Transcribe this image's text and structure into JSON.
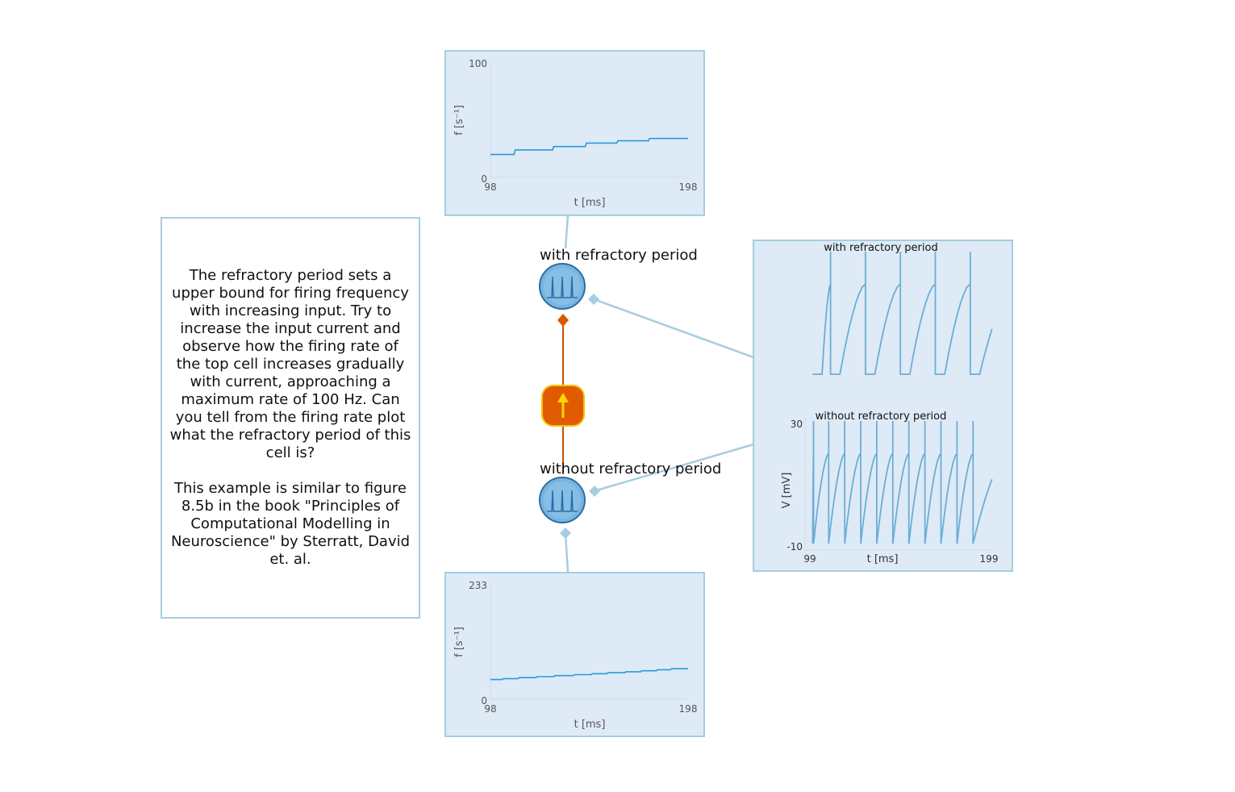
{
  "note": {
    "paragraph1": "The refractory period sets a upper bound for firing frequency with increasing input. Try to increase the input current and observe how the firing rate of the top cell increases gradually with current, approaching a maximum rate of 100 Hz. Can you tell from the firing rate plot what the refractory period of this cell is?",
    "paragraph2": "This example is similar to figure 8.5b in the book \"Principles of Computational Modelling in Neuroscience\" by Sterratt, David et. al."
  },
  "nodes": {
    "neuron_top_label": "with refractory period",
    "neuron_bottom_label": "without refractory period",
    "current_source_icon": "up-arrow-icon",
    "neuron_icon": "spike-train-icon"
  },
  "colors": {
    "panel_fill": "#deeaf6",
    "panel_border": "#a6cde1",
    "trace": "#2a9ad8",
    "voltage_trace": "#6aaed6",
    "current_source": "#e05a00",
    "current_source_border": "#f5c400",
    "arrow": "#ffd800",
    "neuron_fill": "#79b4df",
    "neuron_border": "#2b6ea6",
    "connection": "#a6cde1",
    "current_edge": "#cc5200"
  },
  "chart_data": [
    {
      "id": "rate-top",
      "type": "line",
      "title": "",
      "xlabel": "t [ms]",
      "ylabel": "f [s⁻¹]",
      "xlim": [
        98,
        198
      ],
      "ylim": [
        0,
        100
      ],
      "x_tick_labels": [
        "98",
        "198"
      ],
      "y_tick_labels": [
        "0",
        "100"
      ],
      "series": [
        {
          "x": [
            98,
            110,
            110.5,
            129.5,
            130,
            146,
            146.5,
            162,
            162.5,
            178,
            178.5,
            198
          ],
          "y": [
            20,
            20,
            24,
            24,
            27,
            27,
            30,
            30,
            32,
            32,
            34,
            34
          ]
        }
      ]
    },
    {
      "id": "rate-bottom",
      "type": "line",
      "title": "",
      "xlabel": "t [ms]",
      "ylabel": "f [s⁻¹]",
      "xlim": [
        98,
        198
      ],
      "ylim": [
        0,
        233
      ],
      "x_tick_labels": [
        "98",
        "198"
      ],
      "y_tick_labels": [
        "0",
        "233"
      ],
      "series": [
        {
          "x": [
            98,
            104,
            104.5,
            112,
            112.5,
            121,
            121.5,
            130,
            130.5,
            140,
            140.5,
            149,
            149.5,
            157,
            157.5,
            166,
            166.5,
            174,
            174.5,
            182,
            182.5,
            189,
            189.5,
            198
          ],
          "y": [
            40,
            40,
            42,
            42,
            44,
            44,
            46,
            46,
            48,
            48,
            50,
            50,
            52,
            52,
            54,
            54,
            56,
            56,
            58,
            58,
            60,
            60,
            62,
            62
          ]
        }
      ]
    },
    {
      "id": "voltage",
      "type": "line",
      "title": "",
      "xlabel": "t [ms]",
      "ylabel": "V [mV]",
      "xlim": [
        99,
        199
      ],
      "ylim": [
        -10,
        30
      ],
      "x_tick_labels": [
        "99",
        "199"
      ],
      "y_tick_labels": [
        "-10",
        "30"
      ],
      "series": [
        {
          "name": "with refractory period",
          "spike_times": [
            112.5,
            131,
            149.5,
            168,
            186.5
          ],
          "refractory_ms": 5
        },
        {
          "name": "without refractory period",
          "spike_times": [
            103.5,
            111.5,
            120,
            128.5,
            137,
            145.5,
            154,
            162.5,
            171,
            179.5,
            188
          ]
        }
      ]
    }
  ]
}
